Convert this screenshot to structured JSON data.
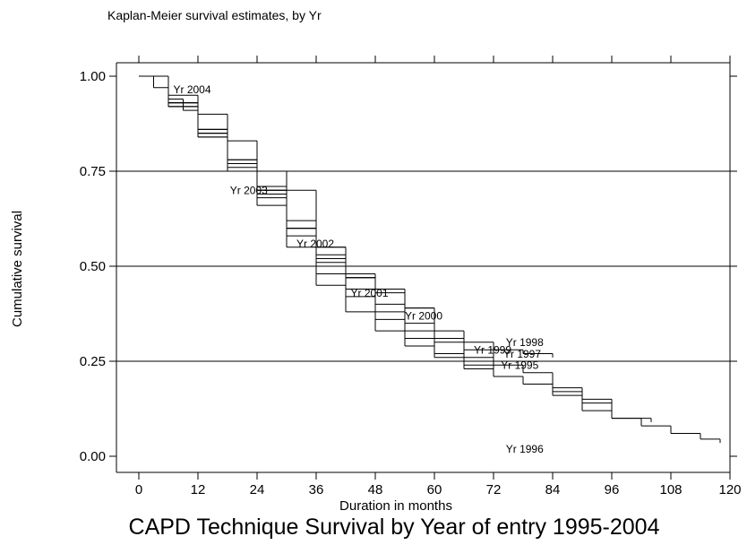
{
  "chart_data": {
    "type": "km-step",
    "title": "Kaplan-Meier survival estimates, by Yr",
    "caption": "CAPD Technique Survival by Year of entry 1995-2004",
    "x_label": "Duration in months",
    "y_label": "Cumulative survival",
    "xlim": [
      0,
      120
    ],
    "ylim": [
      0,
      1
    ],
    "xticks": [
      0,
      12,
      24,
      36,
      48,
      60,
      72,
      84,
      96,
      108,
      120
    ],
    "yticks": [
      {
        "value": 0,
        "label": "0.00"
      },
      {
        "value": 0.25,
        "label": "0.25"
      },
      {
        "value": 0.5,
        "label": "0.50"
      },
      {
        "value": 0.75,
        "label": "0.75"
      },
      {
        "value": 1,
        "label": "1.00"
      }
    ],
    "grid": true,
    "series": [
      {
        "name": "Yr 2004",
        "color": "#000000",
        "x": [
          0,
          3,
          6,
          9,
          12
        ],
        "values": [
          1,
          0.97,
          0.94,
          0.91,
          0.88
        ]
      },
      {
        "name": "Yr 2003",
        "color": "#000000",
        "x": [
          0,
          6,
          12,
          18,
          24
        ],
        "values": [
          1,
          0.93,
          0.84,
          0.76,
          0.69
        ]
      },
      {
        "name": "Yr 2002",
        "color": "#000000",
        "x": [
          0,
          6,
          12,
          18,
          24,
          30,
          36
        ],
        "values": [
          1,
          0.92,
          0.85,
          0.78,
          0.71,
          0.6,
          0.53
        ]
      },
      {
        "name": "Yr 2001",
        "color": "#000000",
        "x": [
          0,
          6,
          12,
          18,
          24,
          30,
          36,
          42,
          48
        ],
        "values": [
          1,
          0.93,
          0.86,
          0.77,
          0.69,
          0.6,
          0.53,
          0.47,
          0.42
        ]
      },
      {
        "name": "Yr 2000",
        "color": "#000000",
        "x": [
          0,
          6,
          12,
          18,
          24,
          30,
          36,
          42,
          48,
          54,
          60
        ],
        "values": [
          1,
          0.95,
          0.9,
          0.83,
          0.75,
          0.7,
          0.55,
          0.47,
          0.43,
          0.39,
          0.34
        ]
      },
      {
        "name": "Yr 1999",
        "color": "#000000",
        "x": [
          0,
          6,
          12,
          18,
          24,
          30,
          36,
          42,
          48,
          54,
          60,
          66,
          72
        ],
        "values": [
          1,
          0.93,
          0.86,
          0.78,
          0.7,
          0.62,
          0.55,
          0.48,
          0.4,
          0.35,
          0.31,
          0.28,
          0.26
        ]
      },
      {
        "name": "Yr 1998",
        "color": "#000000",
        "x": [
          0,
          6,
          12,
          18,
          24,
          30,
          36,
          42,
          48,
          54,
          60,
          66,
          72,
          78,
          84
        ],
        "values": [
          1,
          0.92,
          0.85,
          0.77,
          0.68,
          0.6,
          0.52,
          0.47,
          0.44,
          0.39,
          0.33,
          0.3,
          0.28,
          0.27,
          0.26
        ]
      },
      {
        "name": "Yr 1997",
        "color": "#000000",
        "x": [
          0,
          6,
          12,
          18,
          24,
          30,
          36,
          42,
          48,
          54,
          60,
          66,
          72,
          78,
          84,
          90,
          96
        ],
        "values": [
          1,
          0.93,
          0.86,
          0.77,
          0.7,
          0.6,
          0.51,
          0.44,
          0.38,
          0.33,
          0.3,
          0.26,
          0.24,
          0.22,
          0.18,
          0.15,
          0.13
        ]
      },
      {
        "name": "Yr 1996",
        "color": "#000000",
        "x": [
          0,
          6,
          12,
          18,
          24,
          30,
          36,
          42,
          48,
          54,
          60,
          66,
          72,
          78,
          84,
          90,
          96,
          102,
          108,
          114,
          118
        ],
        "values": [
          1,
          0.92,
          0.84,
          0.75,
          0.66,
          0.55,
          0.45,
          0.38,
          0.33,
          0.29,
          0.26,
          0.23,
          0.21,
          0.19,
          0.17,
          0.14,
          0.1,
          0.08,
          0.06,
          0.045,
          0.035
        ]
      },
      {
        "name": "Yr 1995",
        "color": "#000000",
        "x": [
          0,
          6,
          12,
          18,
          24,
          30,
          36,
          42,
          48,
          54,
          60,
          66,
          72,
          78,
          84,
          90,
          96,
          104
        ],
        "values": [
          1,
          0.93,
          0.85,
          0.77,
          0.7,
          0.58,
          0.48,
          0.42,
          0.36,
          0.31,
          0.27,
          0.24,
          0.21,
          0.19,
          0.16,
          0.12,
          0.1,
          0.09
        ]
      }
    ]
  }
}
